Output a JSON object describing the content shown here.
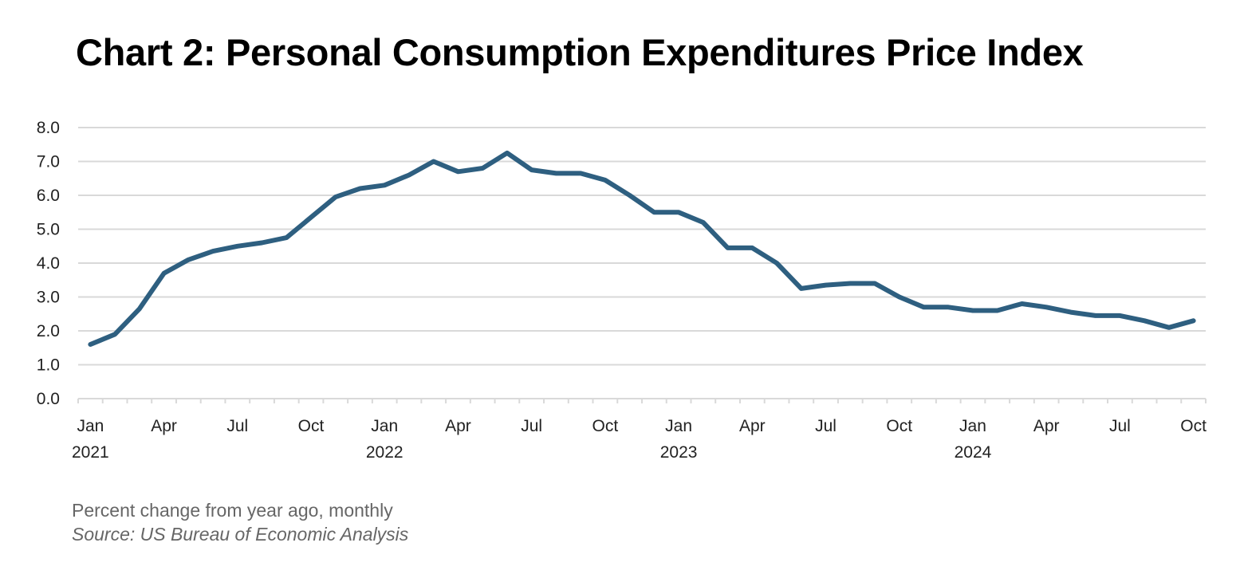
{
  "title": "Chart 2: Personal Consumption Expenditures Price Index",
  "footer": {
    "note": "Percent change from year ago, monthly",
    "source": "Source: US Bureau of Economic Analysis"
  },
  "chart_data": {
    "type": "line",
    "title": "Chart 2: Personal Consumption Expenditures Price Index",
    "xlabel": "",
    "ylabel": "",
    "ylim": [
      0,
      8
    ],
    "yticks": [
      "0.0",
      "1.0",
      "2.0",
      "3.0",
      "4.0",
      "5.0",
      "6.0",
      "7.0",
      "8.0"
    ],
    "grid": true,
    "line_color": "#2e5f80",
    "x_tick_labels": [
      {
        "month": "Jan",
        "year": "2021",
        "index": 0
      },
      {
        "month": "Apr",
        "index": 3
      },
      {
        "month": "Jul",
        "index": 6
      },
      {
        "month": "Oct",
        "index": 9
      },
      {
        "month": "Jan",
        "year": "2022",
        "index": 12
      },
      {
        "month": "Apr",
        "index": 15
      },
      {
        "month": "Jul",
        "index": 18
      },
      {
        "month": "Oct",
        "index": 21
      },
      {
        "month": "Jan",
        "year": "2023",
        "index": 24
      },
      {
        "month": "Apr",
        "index": 27
      },
      {
        "month": "Jul",
        "index": 30
      },
      {
        "month": "Oct",
        "index": 33
      },
      {
        "month": "Jan",
        "year": "2024",
        "index": 36
      },
      {
        "month": "Apr",
        "index": 39
      },
      {
        "month": "Jul",
        "index": 42
      },
      {
        "month": "Oct",
        "index": 45
      }
    ],
    "x": [
      "2021-01",
      "2021-02",
      "2021-03",
      "2021-04",
      "2021-05",
      "2021-06",
      "2021-07",
      "2021-08",
      "2021-09",
      "2021-10",
      "2021-11",
      "2021-12",
      "2022-01",
      "2022-02",
      "2022-03",
      "2022-04",
      "2022-05",
      "2022-06",
      "2022-07",
      "2022-08",
      "2022-09",
      "2022-10",
      "2022-11",
      "2022-12",
      "2023-01",
      "2023-02",
      "2023-03",
      "2023-04",
      "2023-05",
      "2023-06",
      "2023-07",
      "2023-08",
      "2023-09",
      "2023-10",
      "2023-11",
      "2023-12",
      "2024-01",
      "2024-02",
      "2024-03",
      "2024-04",
      "2024-05",
      "2024-06",
      "2024-07",
      "2024-08",
      "2024-09",
      "2024-10"
    ],
    "values": [
      1.6,
      1.9,
      2.65,
      3.7,
      4.1,
      4.35,
      4.5,
      4.6,
      4.75,
      5.35,
      5.95,
      6.2,
      6.3,
      6.6,
      7.0,
      6.7,
      6.8,
      7.25,
      6.75,
      6.65,
      6.65,
      6.45,
      6.0,
      5.5,
      5.5,
      5.2,
      4.45,
      4.45,
      4.0,
      3.25,
      3.35,
      3.4,
      3.4,
      3.0,
      2.7,
      2.7,
      2.6,
      2.6,
      2.8,
      2.7,
      2.55,
      2.45,
      2.45,
      2.3,
      2.1,
      2.3
    ]
  }
}
